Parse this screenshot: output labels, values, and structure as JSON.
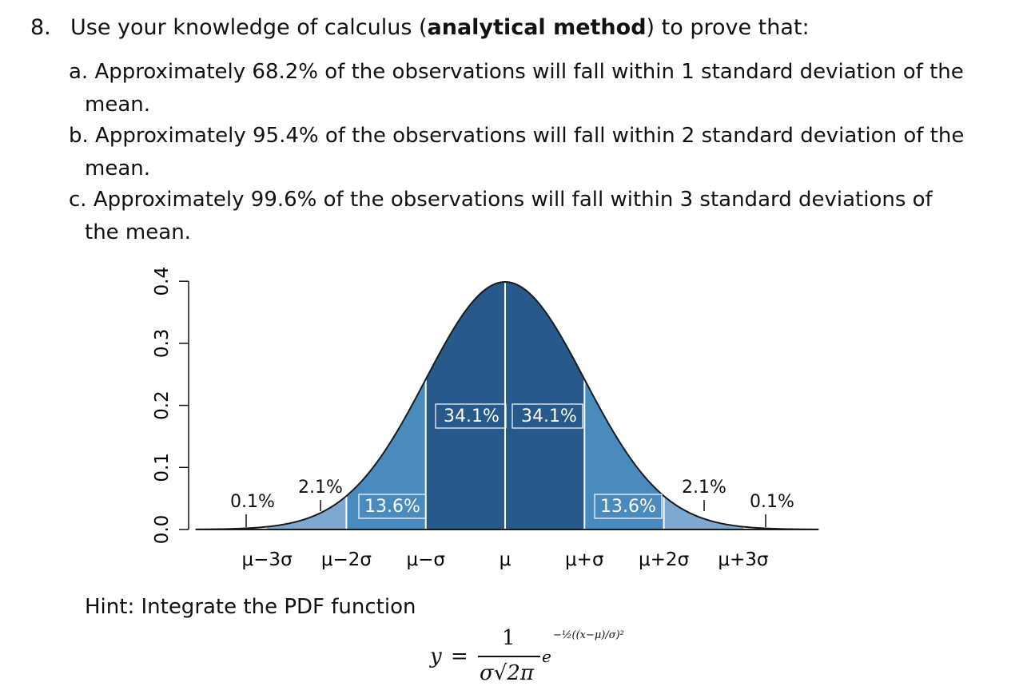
{
  "question": {
    "number": "8.",
    "prefix": "Use your knowledge of calculus (",
    "emphasis": "analytical method",
    "suffix": ") to prove that:"
  },
  "items": [
    {
      "line1": "a. Approximately 68.2% of the observations will fall within 1 standard deviation of the",
      "line2": "mean."
    },
    {
      "line1": "b. Approximately 95.4% of the observations will fall within 2 standard deviation of the",
      "line2": "mean."
    },
    {
      "line1": "c. Approximately 99.6% of the observations will fall within 3 standard deviations of",
      "line2": "the mean."
    }
  ],
  "colors": {
    "dark": "#275a8a",
    "mid": "#4a8bbd",
    "light": "#7ea8d0",
    "divider": "#ffffff",
    "curve": "#1a1a1a"
  },
  "chart_data": {
    "type": "area",
    "x_ticks": [
      "μ−3σ",
      "μ−2σ",
      "μ−σ",
      "μ",
      "μ+σ",
      "μ+2σ",
      "μ+3σ"
    ],
    "x_tick_values": [
      -3,
      -2,
      -1,
      0,
      1,
      2,
      3
    ],
    "xlim": [
      -3.9,
      3.95
    ],
    "y_ticks": [
      "0.0",
      "0.1",
      "0.2",
      "0.3",
      "0.4"
    ],
    "y_tick_values": [
      0,
      0.1,
      0.2,
      0.3,
      0.4
    ],
    "ylim": [
      0,
      0.4
    ],
    "regions": [
      {
        "from": -1,
        "to": 0,
        "label": "34.1%",
        "shade": "dark"
      },
      {
        "from": 0,
        "to": 1,
        "label": "34.1%",
        "shade": "dark"
      },
      {
        "from": -2,
        "to": -1,
        "label": "13.6%",
        "shade": "mid"
      },
      {
        "from": 1,
        "to": 2,
        "label": "13.6%",
        "shade": "mid"
      },
      {
        "from": -3,
        "to": -2,
        "label": "2.1%",
        "shade": "light"
      },
      {
        "from": 2,
        "to": 3,
        "label": "2.1%",
        "shade": "light"
      },
      {
        "from": -3.9,
        "to": -3,
        "label": "0.1%",
        "shade": "none"
      },
      {
        "from": 3,
        "to": 3.95,
        "label": "0.1%",
        "shade": "none"
      }
    ]
  },
  "hint": "Hint: Integrate the PDF function",
  "formula": {
    "y": "y",
    "equals": "=",
    "numerator": "1",
    "denominator": "σ√2π",
    "base": "e",
    "exponent": "−½((x−μ)/σ)²"
  }
}
